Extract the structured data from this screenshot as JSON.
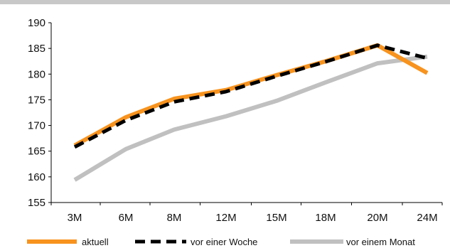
{
  "chart_data": {
    "type": "line",
    "title": "",
    "xlabel": "",
    "ylabel": "",
    "categories": [
      "3M",
      "6M",
      "8M",
      "12M",
      "15M",
      "18M",
      "20M",
      "24M"
    ],
    "ylim": [
      155,
      190
    ],
    "yticks": [
      155,
      160,
      165,
      170,
      175,
      180,
      185,
      190
    ],
    "grid": false,
    "legend_position": "bottom",
    "series": [
      {
        "name": "aktuell",
        "color": "#f7931e",
        "dash": "solid",
        "values": [
          166.1,
          171.6,
          175.2,
          176.9,
          179.8,
          182.5,
          185.6,
          180.2
        ]
      },
      {
        "name": "vor einer Woche",
        "color": "#000000",
        "dash": "dashed",
        "values": [
          165.8,
          171.0,
          174.6,
          176.6,
          179.6,
          182.4,
          185.6,
          183.1
        ]
      },
      {
        "name": "vor einem Monat",
        "color": "#c0c0c0",
        "dash": "solid",
        "values": [
          159.4,
          165.4,
          169.2,
          171.8,
          174.8,
          178.4,
          182.1,
          183.4
        ]
      }
    ]
  }
}
